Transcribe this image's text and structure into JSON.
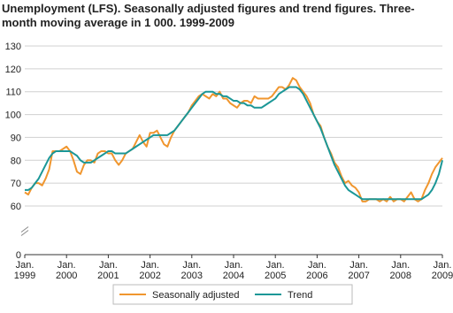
{
  "chart_data": {
    "type": "line",
    "title_lines": [
      "Unemployment (LFS). Seasonally adjusted figures and trend figures. Three-",
      "month moving average in 1 000. 1999-2009"
    ],
    "categories": [
      "Jan. 1999",
      null,
      null,
      null,
      null,
      null,
      null,
      null,
      null,
      null,
      null,
      null,
      "Jan. 2000",
      null,
      null,
      null,
      null,
      null,
      null,
      null,
      null,
      null,
      null,
      null,
      "Jan. 2001",
      null,
      null,
      null,
      null,
      null,
      null,
      null,
      null,
      null,
      null,
      null,
      "Jan. 2002",
      null,
      null,
      null,
      null,
      null,
      null,
      null,
      null,
      null,
      null,
      null,
      "Jan. 2003",
      null,
      null,
      null,
      null,
      null,
      null,
      null,
      null,
      null,
      null,
      null,
      "Jan. 2004",
      null,
      null,
      null,
      null,
      null,
      null,
      null,
      null,
      null,
      null,
      null,
      "Jan. 2005",
      null,
      null,
      null,
      null,
      null,
      null,
      null,
      null,
      null,
      null,
      null,
      "Jan. 2006",
      null,
      null,
      null,
      null,
      null,
      null,
      null,
      null,
      null,
      null,
      null,
      "Jan. 2007",
      null,
      null,
      null,
      null,
      null,
      null,
      null,
      null,
      null,
      null,
      null,
      "Jan. 2008",
      null,
      null,
      null,
      null,
      null,
      null,
      null,
      null,
      null,
      null,
      null,
      "Jan. 2009"
    ],
    "series": [
      {
        "name": "Seasonally adjusted",
        "color": "#f0962e",
        "values": [
          66,
          65,
          68,
          70,
          70,
          69,
          72,
          76,
          84,
          84,
          84,
          85,
          86,
          84,
          80,
          75,
          74,
          78,
          80,
          80,
          79,
          83,
          84,
          84,
          83,
          83,
          80,
          78,
          80,
          83,
          84,
          85,
          88,
          91,
          88,
          86,
          92,
          92,
          93,
          90,
          87,
          86,
          90,
          93,
          95,
          97,
          99,
          101,
          104,
          106,
          108,
          109,
          108,
          107,
          109,
          108,
          110,
          107,
          107,
          105,
          104,
          103,
          105,
          106,
          106,
          105,
          108,
          107,
          107,
          107,
          107,
          108,
          110,
          112,
          112,
          111,
          113,
          116,
          115,
          112,
          110,
          108,
          105,
          100,
          97,
          95,
          90,
          86,
          83,
          79,
          77,
          73,
          70,
          71,
          69,
          68,
          66,
          62,
          62,
          63,
          63,
          63,
          62,
          63,
          62,
          64,
          62,
          63,
          63,
          62,
          64,
          66,
          63,
          62,
          63,
          67,
          70,
          74,
          77,
          79,
          81
        ]
      },
      {
        "name": "Trend",
        "color": "#1b9797",
        "values": [
          67,
          67,
          68,
          70,
          72,
          75,
          78,
          81,
          83,
          84,
          84,
          84,
          84,
          84,
          83,
          82,
          80,
          79,
          79,
          79,
          80,
          81,
          82,
          83,
          84,
          84,
          83,
          83,
          83,
          83,
          84,
          85,
          86,
          87,
          88,
          89,
          90,
          91,
          91,
          91,
          91,
          91,
          92,
          93,
          95,
          97,
          99,
          101,
          103,
          105,
          107,
          109,
          110,
          110,
          110,
          109,
          109,
          108,
          108,
          107,
          106,
          106,
          105,
          105,
          104,
          104,
          103,
          103,
          103,
          104,
          105,
          106,
          107,
          109,
          110,
          111,
          112,
          112,
          112,
          111,
          109,
          106,
          103,
          100,
          97,
          94,
          90,
          86,
          82,
          78,
          75,
          72,
          69,
          67,
          66,
          65,
          64,
          63,
          63,
          63,
          63,
          63,
          63,
          63,
          63,
          63,
          63,
          63,
          63,
          63,
          63,
          63,
          63,
          63,
          63,
          64,
          65,
          67,
          70,
          74,
          80
        ]
      }
    ],
    "ylim": [
      0,
      130
    ],
    "yticks": [
      0,
      60,
      70,
      80,
      90,
      100,
      110,
      120,
      130
    ],
    "y_axis_break": true,
    "grid": true,
    "legend": "bottom"
  }
}
